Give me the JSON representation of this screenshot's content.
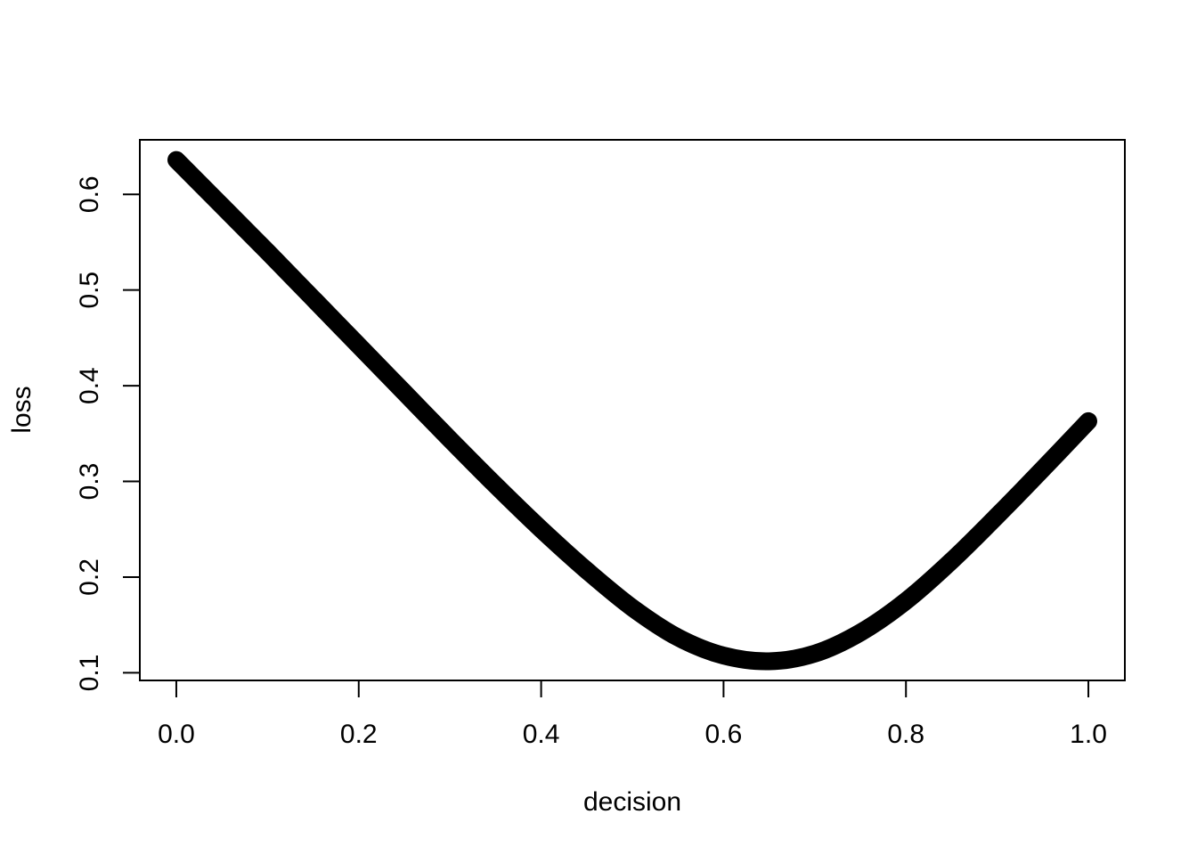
{
  "chart_data": {
    "type": "line",
    "title": "",
    "xlabel": "decision",
    "ylabel": "loss",
    "xlim": [
      -0.04,
      1.04
    ],
    "ylim": [
      0.092,
      0.657
    ],
    "x_ticks": [
      0.0,
      0.2,
      0.4,
      0.6,
      0.8,
      1.0
    ],
    "x_tick_labels": [
      "0.0",
      "0.2",
      "0.4",
      "0.6",
      "0.8",
      "1.0"
    ],
    "y_ticks": [
      0.1,
      0.2,
      0.3,
      0.4,
      0.5,
      0.6
    ],
    "y_tick_labels": [
      "0.1",
      "0.2",
      "0.3",
      "0.4",
      "0.5",
      "0.6"
    ],
    "grid": false,
    "series": [
      {
        "color": "#000000",
        "x": [
          0.0,
          0.05,
          0.1,
          0.15,
          0.2,
          0.25,
          0.3,
          0.35,
          0.4,
          0.45,
          0.5,
          0.55,
          0.6,
          0.65,
          0.7,
          0.75,
          0.8,
          0.85,
          0.9,
          0.95,
          1.0
        ],
        "y": [
          0.636,
          0.588,
          0.54,
          0.491,
          0.442,
          0.393,
          0.344,
          0.296,
          0.25,
          0.207,
          0.168,
          0.137,
          0.118,
          0.112,
          0.12,
          0.142,
          0.175,
          0.217,
          0.264,
          0.313,
          0.363
        ]
      }
    ]
  }
}
